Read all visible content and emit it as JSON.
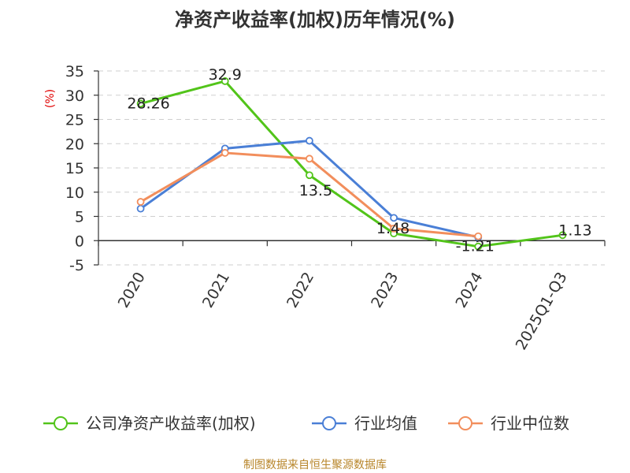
{
  "chart_data": {
    "type": "line",
    "title": "净资产收益率(加权)历年情况(%)",
    "ylabel": "(%)",
    "categories": [
      "2020",
      "2021",
      "2022",
      "2023",
      "2024",
      "2025Q1-Q3"
    ],
    "ylim": [
      -5,
      35
    ],
    "yticks": [
      35,
      30,
      25,
      20,
      15,
      10,
      5,
      0,
      -5
    ],
    "grid": true,
    "legend_position": "bottom",
    "series": [
      {
        "name": "公司净资产收益率(加权)",
        "color": "#52c41a",
        "values": [
          28.26,
          32.9,
          13.5,
          1.48,
          -1.21,
          1.13
        ],
        "labels": [
          "28.26",
          "32.9",
          "13.5",
          "1.48",
          "-1.21",
          "1.13"
        ]
      },
      {
        "name": "行业均值",
        "color": "#4a7fd6",
        "values": [
          6.6,
          19.0,
          20.6,
          4.7,
          0.7,
          null
        ]
      },
      {
        "name": "行业中位数",
        "color": "#f28e5c",
        "values": [
          8.0,
          18.1,
          16.9,
          2.5,
          0.9,
          null
        ]
      }
    ]
  },
  "source": "制图数据来自恒生聚源数据库"
}
